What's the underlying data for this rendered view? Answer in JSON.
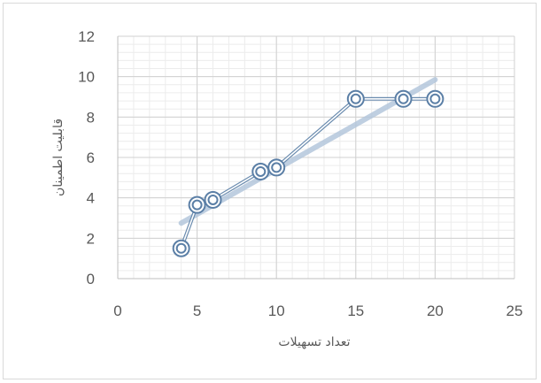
{
  "chart_data": {
    "type": "scatter",
    "xlabel": "تعداد تسهیلات",
    "ylabel": "قابلیت اطمینان",
    "xlim": [
      0,
      25
    ],
    "ylim": [
      0,
      12
    ],
    "x_ticks": [
      "0",
      "5",
      "10",
      "15",
      "20",
      "25"
    ],
    "y_ticks": [
      "0",
      "2",
      "4",
      "6",
      "8",
      "10",
      "12"
    ],
    "grid": true,
    "legend": "none",
    "series": [
      {
        "x": [
          4,
          5,
          6,
          9,
          10,
          15,
          18,
          20
        ],
        "y": [
          1.5,
          3.65,
          3.9,
          5.3,
          5.5,
          8.9,
          8.9,
          8.9
        ],
        "marker": "double-circle",
        "line": "straight",
        "color": "#5b7fa6"
      }
    ],
    "trendline": {
      "type": "linear",
      "x_range": [
        4,
        20
      ],
      "y_range": [
        2.75,
        9.85
      ],
      "color": "#b4c7dc"
    }
  }
}
